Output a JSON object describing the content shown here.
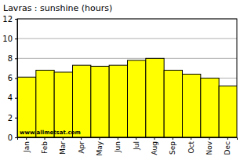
{
  "chart_data": {
    "type": "bar",
    "title": "Lavras : sunshine (hours)",
    "categories": [
      "Jan",
      "Feb",
      "Mar",
      "Apr",
      "May",
      "Jun",
      "Jul",
      "Aug",
      "Sep",
      "Oct",
      "Nov",
      "Dec"
    ],
    "values": [
      6.1,
      6.8,
      6.6,
      7.3,
      7.2,
      7.3,
      7.8,
      8.0,
      6.8,
      6.4,
      6.0,
      5.2
    ],
    "color": "#ffff00",
    "ylim": [
      0,
      12
    ],
    "yticks": [
      0,
      2,
      4,
      6,
      8,
      10,
      12
    ],
    "grid": true,
    "annotation": "www.allmetsat.com"
  }
}
